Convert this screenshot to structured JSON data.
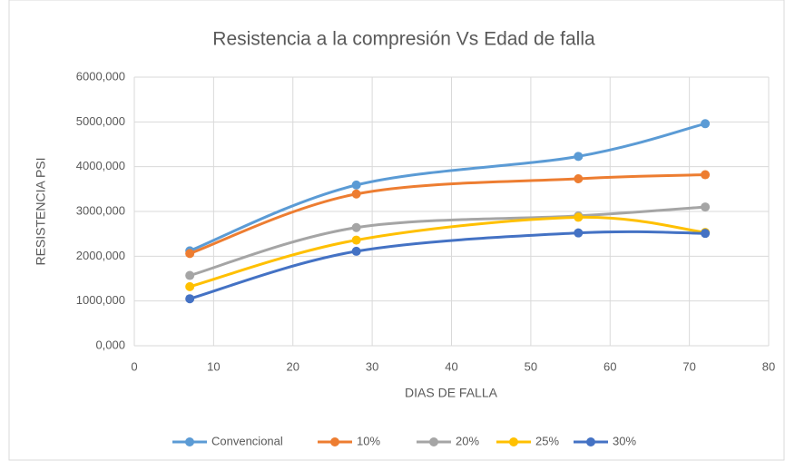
{
  "chart_data": {
    "type": "line",
    "title": "Resistencia a la compresión Vs Edad de falla",
    "xlabel": "DIAS DE FALLA",
    "ylabel": "RESISTENCIA PSI",
    "x": [
      7,
      28,
      56,
      72
    ],
    "series": [
      {
        "name": "Convencional",
        "color": "#5b9bd5",
        "values": [
          2120,
          3590,
          4230,
          4960
        ]
      },
      {
        "name": "10%",
        "color": "#ed7d31",
        "values": [
          2060,
          3390,
          3730,
          3820
        ]
      },
      {
        "name": "20%",
        "color": "#a5a5a5",
        "values": [
          1570,
          2640,
          2900,
          3100
        ]
      },
      {
        "name": "25%",
        "color": "#ffc000",
        "values": [
          1320,
          2360,
          2870,
          2530
        ]
      },
      {
        "name": "30%",
        "color": "#4472c4",
        "values": [
          1050,
          2110,
          2520,
          2510
        ]
      }
    ],
    "xlim": [
      0,
      80
    ],
    "xticks": [
      0,
      10,
      20,
      30,
      40,
      50,
      60,
      70,
      80
    ],
    "ylim": [
      0,
      6000
    ],
    "yticks": [
      {
        "value": 0,
        "label": "0,000"
      },
      {
        "value": 1000,
        "label": "1000,000"
      },
      {
        "value": 2000,
        "label": "2000,000"
      },
      {
        "value": 3000,
        "label": "3000,000"
      },
      {
        "value": 4000,
        "label": "4000,000"
      },
      {
        "value": 5000,
        "label": "5000,000"
      },
      {
        "value": 6000,
        "label": "6000,000"
      }
    ],
    "grid": true,
    "smooth": true,
    "legend": "bottom"
  }
}
